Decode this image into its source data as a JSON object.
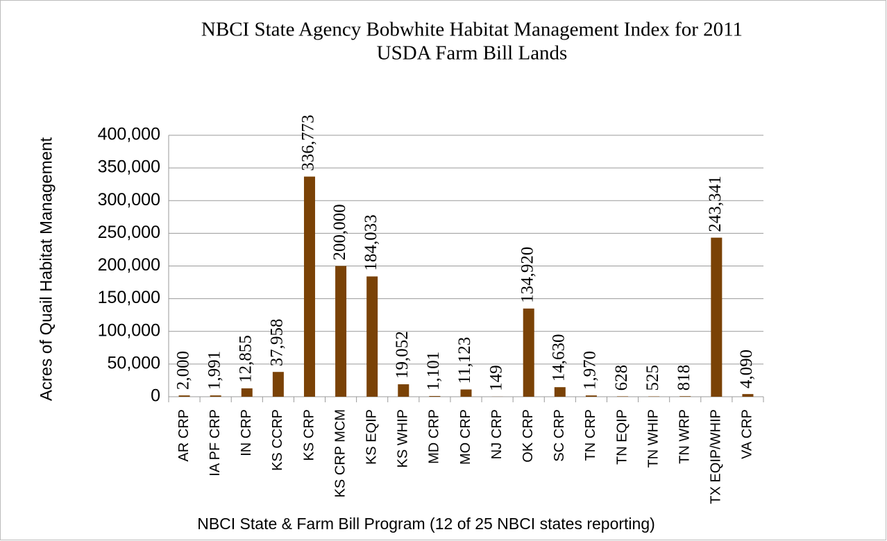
{
  "chart_data": {
    "type": "bar",
    "title": "NBCI State Agency Bobwhite Habitat Management Index for 2011",
    "subtitle": "USDA Farm Bill Lands",
    "y_label": "Acres of Quail Habitat Management",
    "x_label": "NBCI State & Farm Bill Program (12 of 25 NBCI states reporting)",
    "categories": [
      "AR CRP",
      "IA PF CRP",
      "IN CRP",
      "KS CCRP",
      "KS CRP",
      "KS CRP MCM",
      "KS EQIP",
      "KS WHIP",
      "MD CRP",
      "MO CRP",
      "NJ CRP",
      "OK CRP",
      "SC CRP",
      "TN CRP",
      "TN EQIP",
      "TN WHIP",
      "TN WRP",
      "TX EQIP/WHIP",
      "VA CRP"
    ],
    "values": [
      2000,
      1991,
      12855,
      37958,
      336773,
      200000,
      184033,
      19052,
      1101,
      11123,
      149,
      134920,
      14630,
      1970,
      628,
      525,
      818,
      243341,
      4090
    ],
    "value_labels": [
      "2,000",
      "1,991",
      "12,855",
      "37,958",
      "336,773",
      "200,000",
      "184,033",
      "19,052",
      "1,101",
      "11,123",
      "149",
      "134,920",
      "14,630",
      "1,970",
      "628",
      "525",
      "818",
      "243,341",
      "4,090"
    ],
    "color": "#7a4206",
    "ylim": [
      0,
      400000
    ],
    "yticks": [
      0,
      {
        "value": 50000,
        "label": "50,000"
      },
      {
        "value": 100000,
        "label": "100,000"
      },
      {
        "value": 150000,
        "label": "150,000"
      },
      {
        "value": 200000,
        "label": "200,000"
      },
      {
        "value": 250000,
        "label": "250,000"
      },
      {
        "value": 300000,
        "label": "300,000"
      },
      {
        "value": 350000,
        "label": "350,000"
      },
      {
        "value": 400000,
        "label": "400,000"
      }
    ],
    "grid": true
  }
}
